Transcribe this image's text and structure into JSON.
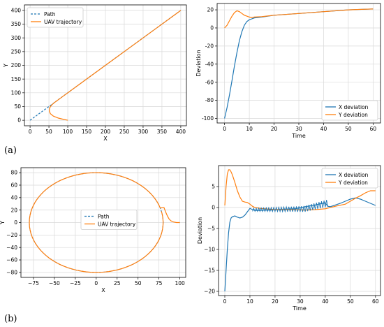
{
  "figure_labels": [
    "(a)",
    "(b)"
  ],
  "colors": {
    "path": "#1f77b4",
    "uav": "#ff7f0e",
    "grid": "#d9d9d9",
    "axis": "#000000"
  },
  "chart_data": [
    {
      "id": "a-left",
      "type": "line",
      "xlabel": "X",
      "ylabel": "Y",
      "xlim": [
        -15,
        415
      ],
      "ylim": [
        -20,
        420
      ],
      "xticks": [
        0,
        50,
        100,
        150,
        200,
        250,
        300,
        350,
        400
      ],
      "yticks": [
        0,
        50,
        100,
        150,
        200,
        250,
        300,
        350,
        400
      ],
      "grid": true,
      "legend": "upper-left",
      "series": [
        {
          "name": "Path",
          "style": "dashed",
          "color": "#1f77b4",
          "x": [
            0,
            400
          ],
          "y": [
            0,
            400
          ]
        },
        {
          "name": "UAV trajectory",
          "style": "solid",
          "color": "#ff7f0e",
          "x": [
            100,
            90,
            75,
            62,
            54,
            51,
            52,
            57,
            65,
            80,
            120,
            200,
            300,
            400
          ],
          "y": [
            0,
            3,
            8,
            15,
            24,
            34,
            45,
            55,
            65,
            80,
            120,
            200,
            300,
            400
          ]
        }
      ]
    },
    {
      "id": "a-right",
      "type": "line",
      "xlabel": "Time",
      "ylabel": "Deviation",
      "xlim": [
        -3,
        63
      ],
      "ylim": [
        -105,
        27
      ],
      "xticks": [
        0,
        10,
        20,
        30,
        40,
        50,
        60
      ],
      "yticks": [
        -100,
        -80,
        -60,
        -40,
        -20,
        0,
        20
      ],
      "grid": true,
      "legend": "lower-right",
      "series": [
        {
          "name": "X deviation",
          "color": "#1f77b4",
          "x": [
            0,
            1,
            2,
            3,
            4,
            5,
            6,
            7,
            8,
            9,
            10,
            11,
            12,
            15,
            20,
            30,
            40,
            50,
            60
          ],
          "y": [
            -100,
            -88,
            -74,
            -58,
            -42,
            -27,
            -14,
            -4,
            3,
            7,
            9,
            10,
            11,
            12,
            14,
            16,
            18,
            20,
            21
          ]
        },
        {
          "name": "Y deviation",
          "color": "#ff7f0e",
          "x": [
            0,
            1,
            2,
            3,
            4,
            5,
            6,
            7,
            8,
            9,
            10,
            11,
            12,
            15,
            20,
            30,
            40,
            50,
            60
          ],
          "y": [
            0,
            3,
            8,
            13,
            17,
            19,
            18,
            16,
            14,
            13,
            12,
            11.5,
            12,
            12.5,
            14,
            16,
            18,
            20,
            21
          ]
        }
      ]
    },
    {
      "id": "b-left",
      "type": "line",
      "xlabel": "X",
      "ylabel": "Y",
      "xlim": [
        -90,
        107
      ],
      "ylim": [
        -88,
        88
      ],
      "xticks": [
        -75,
        -50,
        -25,
        0,
        25,
        50,
        75,
        100
      ],
      "yticks": [
        -80,
        -60,
        -40,
        -20,
        0,
        20,
        40,
        60,
        80
      ],
      "xticklabels": [
        "−75",
        "−50",
        "−25",
        "0",
        "25",
        "50",
        "75",
        "100"
      ],
      "yticklabels": [
        "−80",
        "−60",
        "−40",
        "−20",
        "0",
        "20",
        "40",
        "60",
        "80"
      ],
      "grid": true,
      "legend": "center",
      "circle_radius": 80,
      "series": [
        {
          "name": "Path",
          "style": "dashed",
          "color": "#1f77b4"
        },
        {
          "name": "UAV trajectory",
          "style": "solid",
          "color": "#ff7f0e",
          "approach_x": [
            100,
            96,
            92,
            89,
            87,
            85,
            83,
            81
          ],
          "approach_y": [
            0,
            0,
            1,
            3,
            6,
            11,
            17,
            24
          ]
        }
      ]
    },
    {
      "id": "b-right",
      "type": "line",
      "xlabel": "Time",
      "ylabel": "Deviation",
      "xlim": [
        -2.5,
        62
      ],
      "ylim": [
        -21,
        10
      ],
      "xticks": [
        0,
        10,
        20,
        30,
        40,
        50,
        60
      ],
      "yticks": [
        -20,
        -15,
        -10,
        -5,
        0,
        5
      ],
      "yticklabels": [
        "−20",
        "−15",
        "−10",
        "−5",
        "0",
        "5"
      ],
      "grid": true,
      "legend": "upper-right",
      "series": [
        {
          "name": "X deviation",
          "color": "#1f77b4",
          "x": [
            0,
            0.5,
            1,
            1.5,
            2,
            2.5,
            3,
            4,
            5,
            6,
            7,
            8,
            9,
            10,
            11,
            12,
            14,
            16,
            18,
            20,
            24,
            28,
            32,
            36,
            38,
            40,
            41,
            42,
            44,
            46,
            48,
            50,
            52,
            54,
            56,
            58,
            60
          ],
          "y": [
            -20,
            -15,
            -10,
            -6,
            -3.5,
            -2.5,
            -2.2,
            -2,
            -2.3,
            -2.5,
            -2.3,
            -1.8,
            -1,
            -0.2,
            -0.5,
            -0.7,
            -0.7,
            -0.6,
            -0.6,
            -0.5,
            -0.4,
            -0.3,
            0.2,
            0.6,
            0.9,
            1.1,
            0.3,
            0.2,
            0.6,
            1,
            1.5,
            2,
            2.3,
            2,
            1.5,
            1,
            0.5
          ]
        },
        {
          "name": "Y deviation",
          "color": "#ff7f0e",
          "x": [
            0,
            0.5,
            1,
            1.5,
            2,
            2.5,
            3,
            4,
            5,
            6,
            7,
            8,
            9,
            10,
            11,
            12,
            14,
            16,
            18,
            20,
            24,
            28,
            32,
            36,
            40,
            44,
            48,
            50,
            52,
            54,
            56,
            58,
            60
          ],
          "y": [
            0.5,
            5,
            8,
            9,
            9,
            8.5,
            7.8,
            6,
            4,
            2.5,
            1.5,
            1.3,
            1.2,
            0.8,
            0.3,
            0,
            -0.2,
            -0.3,
            -0.4,
            -0.5,
            -0.5,
            -0.5,
            -0.6,
            -0.5,
            -0.3,
            0.3,
            0.8,
            1.5,
            2.2,
            2.8,
            3.5,
            4,
            4
          ]
        }
      ]
    }
  ]
}
